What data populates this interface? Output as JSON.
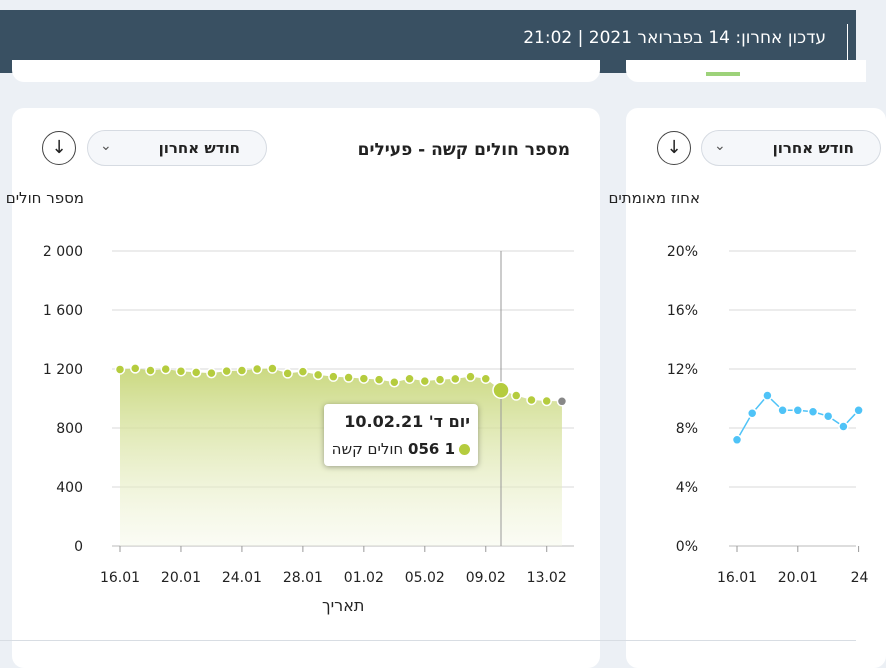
{
  "header": {
    "last_update": "עדכון אחרון: 14 בפברואר 2021 | 21:02"
  },
  "panel1": {
    "title": "מספר חולים קשה - פעילים",
    "range": "חודש אחרון",
    "download_icon": "arrow-down-circle-icon",
    "tooltip": {
      "date": "יום ד' 10.02.21",
      "value": "1 056",
      "series_label": "חולים קשה"
    },
    "accent_color": "#b5cc3e",
    "last_point_color": "#888888"
  },
  "panel2": {
    "range": "חודש אחרון",
    "download_icon": "arrow-down-circle-icon",
    "line_color": "#4fc3f7"
  },
  "chart_data": [
    {
      "type": "area",
      "title": "מספר חולים קשה - פעילים",
      "ylabel": "מספר חולים",
      "xlabel": "תאריך",
      "ylim": [
        0,
        2000
      ],
      "yticks": [
        "2 000",
        "1 600",
        "1 200",
        "800",
        "400",
        "0"
      ],
      "yticks_values": [
        2000,
        1600,
        1200,
        800,
        400,
        0
      ],
      "xticks": [
        "16.01",
        "20.01",
        "24.01",
        "28.01",
        "01.02",
        "05.02",
        "09.02",
        "13.02"
      ],
      "grid": true,
      "x_start": "16.01.21",
      "x_end": "14.02.21",
      "highlight_index": 25,
      "values": [
        1197,
        1204,
        1190,
        1199,
        1185,
        1177,
        1172,
        1186,
        1190,
        1200,
        1203,
        1170,
        1182,
        1160,
        1148,
        1142,
        1135,
        1128,
        1110,
        1134,
        1118,
        1128,
        1133,
        1148,
        1134,
        1056,
        1020,
        990,
        983,
        981
      ]
    },
    {
      "type": "line",
      "ylabel": "אחוז מאומתים",
      "ylim": [
        0,
        20
      ],
      "yticks": [
        "20%",
        "16%",
        "12%",
        "8%",
        "4%",
        "0%"
      ],
      "yticks_values": [
        20,
        16,
        12,
        8,
        4,
        0
      ],
      "xticks": [
        "16.01",
        "20.01",
        "24"
      ],
      "grid": true,
      "x_start": "16.01.21",
      "values": [
        7.2,
        9.0,
        10.2,
        9.2,
        9.2,
        9.1,
        8.8,
        8.1,
        9.2
      ]
    }
  ]
}
